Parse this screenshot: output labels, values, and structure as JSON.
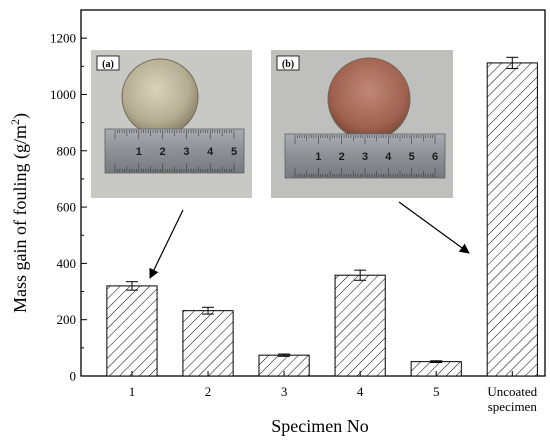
{
  "chart_data": {
    "type": "bar",
    "categories": [
      "1",
      "2",
      "3",
      "4",
      "5",
      "Uncoated specimen"
    ],
    "category_label_lines": [
      [
        "1"
      ],
      [
        "2"
      ],
      [
        "3"
      ],
      [
        "4"
      ],
      [
        "5"
      ],
      [
        "Uncoated",
        "specimen"
      ]
    ],
    "values": [
      320,
      232,
      74,
      358,
      51,
      1112
    ],
    "errors": [
      15,
      12,
      4,
      18,
      3,
      20
    ],
    "xlabel": "Specimen No",
    "ylabel_main": "Mass gain of fouling  (g/m",
    "ylabel_sup": "2",
    "ylabel_end": ")",
    "ylim": [
      0,
      1300
    ],
    "yticks": [
      0,
      200,
      400,
      600,
      800,
      1000,
      1200
    ],
    "bar_fill": "hatched",
    "grid": false,
    "legend": "none",
    "insets": [
      {
        "tag": "(a)",
        "disc_color": "#b9b49c",
        "ruler_numbers": [
          "1",
          "2",
          "3",
          "4",
          "5"
        ],
        "points_to_category": "1"
      },
      {
        "tag": "(b)",
        "disc_color": "#a7675a",
        "ruler_numbers": [
          "1",
          "2",
          "3",
          "4",
          "5",
          "6"
        ],
        "points_to_category": "Uncoated specimen"
      }
    ]
  },
  "colors": {
    "axis": "#000000",
    "bar_stroke": "#000000",
    "hatch": "#000000",
    "photo_bg_a": "#c8c8c4",
    "photo_bg_b": "#bfc0bd",
    "ruler": "#8e9297",
    "disc_a": "#b9b49c",
    "disc_b": "#a7675a"
  }
}
